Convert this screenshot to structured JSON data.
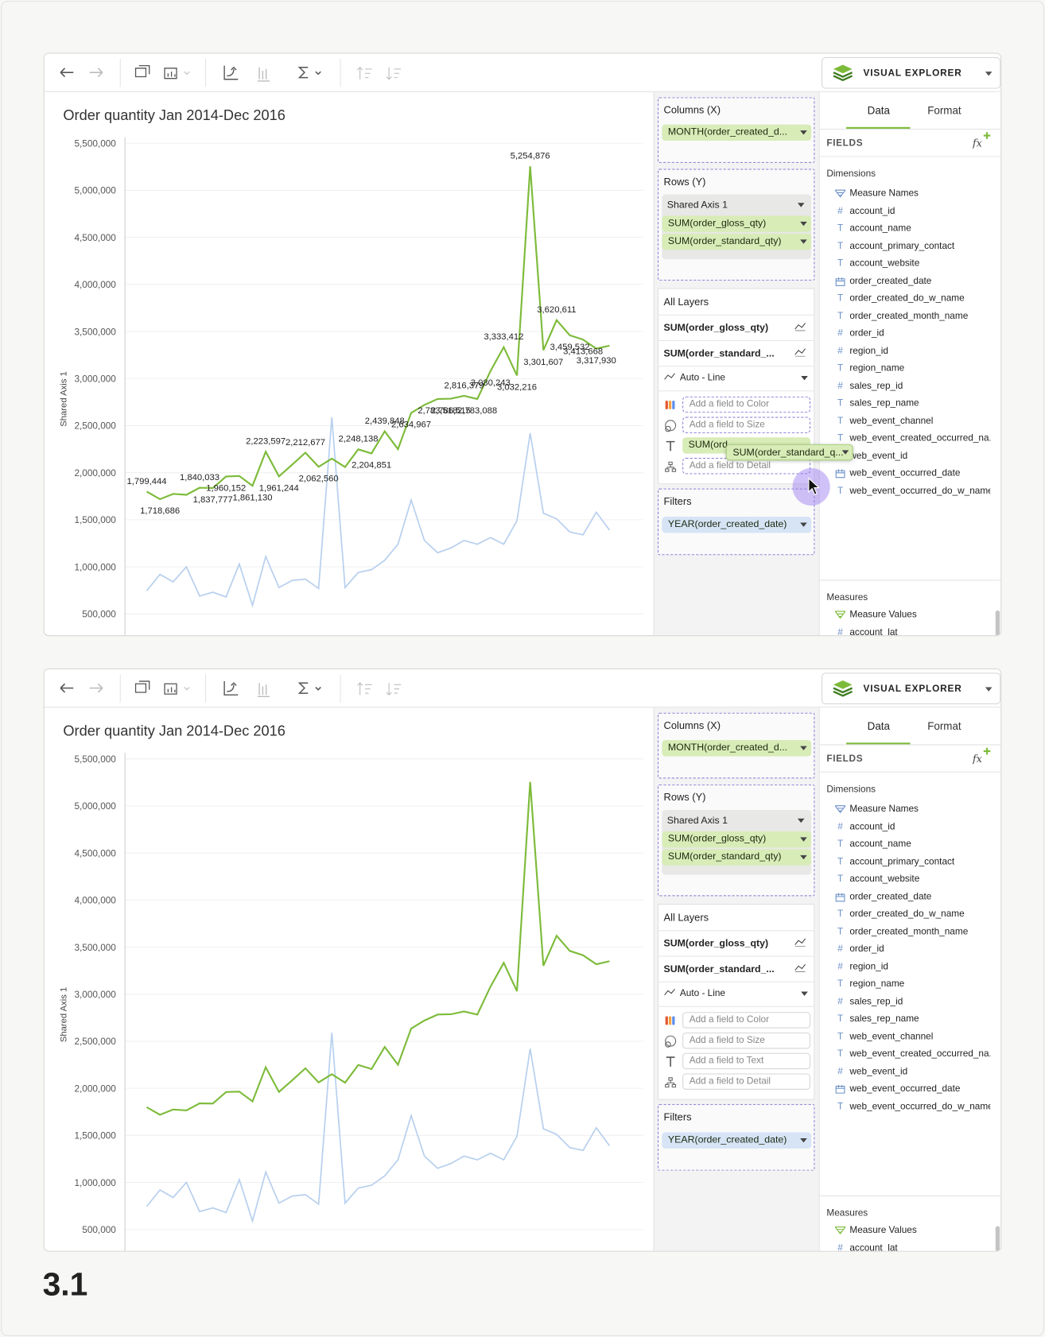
{
  "figure_label": "3.1",
  "chart_data": [
    {
      "type": "line",
      "title": "Order quantity Jan 2014-Dec 2016",
      "y_label": "Shared Axis 1",
      "categories": [
        null,
        null,
        null,
        null,
        null,
        null,
        null,
        null,
        null,
        null,
        null,
        null,
        null,
        null,
        null,
        null,
        null,
        null,
        null,
        null,
        null,
        null,
        null,
        null,
        null,
        null,
        null,
        null,
        null,
        null,
        null,
        null,
        null,
        null,
        null,
        null
      ],
      "series": [
        {
          "color": "#7dbb3a",
          "values": [
            1799444,
            1718686,
            1775000,
            1765000,
            1840033,
            1837777,
            1960152,
            1965000,
            1861130,
            2223597,
            1961244,
            2085000,
            2212677,
            2062560,
            2150000,
            2060000,
            2248138,
            2204851,
            2439848,
            2250000,
            2634967,
            2720000,
            2783518,
            2786515,
            2816379,
            2783088,
            3080243,
            3333412,
            3032216,
            5254876,
            3301607,
            3620611,
            3459532,
            3413668,
            3317930,
            3350000
          ],
          "value_labels": [
            "1,799,444",
            "1,718,686",
            null,
            null,
            "1,840,033",
            "1,837,777",
            "1,960,152",
            null,
            "1,861,130",
            "2,223,597",
            "1,961,244",
            null,
            "2,212,677",
            "2,062,560",
            null,
            null,
            "2,248,138",
            "2,204,851",
            "2,439,848",
            null,
            "2,634,967",
            null,
            "2,783,518",
            "2,786,515",
            "2,816,379",
            "2,783,088",
            "3,080,243",
            "3,333,412",
            "3,032,216",
            "5,254,876",
            "3,301,607",
            "3,620,611",
            "3,459,532",
            "3,413,668",
            "3,317,930",
            null
          ]
        },
        {
          "color": "#b8d0ee",
          "values": [
            745000,
            920000,
            840000,
            1000000,
            690000,
            730000,
            680000,
            1030000,
            590000,
            1110000,
            780000,
            855000,
            870000,
            770000,
            2590000,
            780000,
            940000,
            970000,
            1070000,
            1240000,
            1710000,
            1280000,
            1150000,
            1200000,
            1280000,
            1240000,
            1310000,
            1240000,
            1490000,
            2420000,
            1570000,
            1510000,
            1370000,
            1340000,
            1580000,
            1390000
          ]
        }
      ],
      "ylim": [
        264500,
        5563400
      ],
      "yticks": [
        {
          "value": 500000,
          "label": "500,000"
        },
        {
          "value": 1000000,
          "label": "1,000,000"
        },
        {
          "value": 1500000,
          "label": "1,500,000"
        },
        {
          "value": 2000000,
          "label": "2,000,000"
        },
        {
          "value": 2500000,
          "label": "2,500,000"
        },
        {
          "value": 3000000,
          "label": "3,000,000"
        },
        {
          "value": 3500000,
          "label": "3,500,000"
        },
        {
          "value": 4000000,
          "label": "4,000,000"
        },
        {
          "value": 4500000,
          "label": "4,500,000"
        },
        {
          "value": 5000000,
          "label": "5,000,000"
        },
        {
          "value": 5500000,
          "label": "5,500,000"
        }
      ],
      "grid": true
    },
    {
      "type": "line",
      "title": "Order quantity Jan 2014-Dec 2016",
      "y_label": "Shared Axis 1",
      "categories": [
        null,
        null,
        null,
        null,
        null,
        null,
        null,
        null,
        null,
        null,
        null,
        null,
        null,
        null,
        null,
        null,
        null,
        null,
        null,
        null,
        null,
        null,
        null,
        null,
        null,
        null,
        null,
        null,
        null,
        null,
        null,
        null,
        null,
        null,
        null,
        null
      ],
      "series": [
        {
          "color": "#7dbb3a",
          "values": [
            1799444,
            1718686,
            1775000,
            1765000,
            1840033,
            1837777,
            1960152,
            1965000,
            1861130,
            2223597,
            1961244,
            2085000,
            2212677,
            2062560,
            2150000,
            2060000,
            2248138,
            2204851,
            2439848,
            2250000,
            2634967,
            2720000,
            2783518,
            2786515,
            2816379,
            2783088,
            3080243,
            3333412,
            3032216,
            5254876,
            3301607,
            3620611,
            3459532,
            3413668,
            3317930,
            3350000
          ]
        },
        {
          "color": "#b8d0ee",
          "values": [
            745000,
            920000,
            840000,
            1000000,
            690000,
            730000,
            680000,
            1030000,
            590000,
            1110000,
            780000,
            855000,
            870000,
            770000,
            2590000,
            780000,
            940000,
            970000,
            1070000,
            1240000,
            1710000,
            1280000,
            1150000,
            1200000,
            1280000,
            1240000,
            1310000,
            1240000,
            1490000,
            2420000,
            1570000,
            1510000,
            1370000,
            1340000,
            1580000,
            1390000
          ]
        }
      ],
      "ylim": [
        264500,
        5563400
      ],
      "yticks": [
        {
          "value": 500000,
          "label": "500,000"
        },
        {
          "value": 1000000,
          "label": "1,000,000"
        },
        {
          "value": 1500000,
          "label": "1,500,000"
        },
        {
          "value": 2000000,
          "label": "2,000,000"
        },
        {
          "value": 2500000,
          "label": "2,500,000"
        },
        {
          "value": 3000000,
          "label": "3,000,000"
        },
        {
          "value": 3500000,
          "label": "3,500,000"
        },
        {
          "value": 4000000,
          "label": "4,000,000"
        },
        {
          "value": 4500000,
          "label": "4,500,000"
        },
        {
          "value": 5000000,
          "label": "5,000,000"
        },
        {
          "value": 5500000,
          "label": "5,500,000"
        }
      ],
      "grid": true
    }
  ],
  "panels": [
    {
      "app_title": "VISUAL EXPLORER",
      "columns": {
        "title": "Columns (X)",
        "pills": [
          "MONTH(order_created_d..."
        ]
      },
      "rows": {
        "title": "Rows (Y)",
        "group": "Shared Axis 1",
        "pills": [
          "SUM(order_gloss_qty)",
          "SUM(order_standard_qty)"
        ]
      },
      "layers": {
        "title": "All Layers",
        "items": [
          "SUM(order_gloss_qty)",
          "SUM(order_standard_..."
        ],
        "mark_type": "Auto - Line",
        "encodings": [
          "Add a field to Color",
          "Add a field to Size",
          "SUM(ord",
          "Add a field to Detail"
        ],
        "filled_encoding": 2
      },
      "drag_pill": "SUM(order_standard_q...",
      "filters": {
        "title": "Filters",
        "pills": [
          "YEAR(order_created_date)"
        ]
      },
      "fields": {
        "tabs": [
          "Data",
          "Format"
        ],
        "header": "FIELDS",
        "formula": "fx",
        "dimensions_title": "Dimensions",
        "dimensions": [
          {
            "icon": "names",
            "name": "Measure Names"
          },
          {
            "icon": "#",
            "name": "account_id"
          },
          {
            "icon": "T",
            "name": "account_name"
          },
          {
            "icon": "T",
            "name": "account_primary_contact"
          },
          {
            "icon": "T",
            "name": "account_website"
          },
          {
            "icon": "calendar",
            "name": "order_created_date"
          },
          {
            "icon": "T",
            "name": "order_created_do_w_name"
          },
          {
            "icon": "T",
            "name": "order_created_month_name"
          },
          {
            "icon": "#",
            "name": "order_id"
          },
          {
            "icon": "#",
            "name": "region_id"
          },
          {
            "icon": "T",
            "name": "region_name"
          },
          {
            "icon": "#",
            "name": "sales_rep_id"
          },
          {
            "icon": "T",
            "name": "sales_rep_name"
          },
          {
            "icon": "T",
            "name": "web_event_channel"
          },
          {
            "icon": "T",
            "name": "web_event_created_occurred_na..."
          },
          {
            "icon": "#",
            "name": "web_event_id"
          },
          {
            "icon": "calendar",
            "name": "web_event_occurred_date"
          },
          {
            "icon": "T",
            "name": "web_event_occurred_do_w_name"
          }
        ],
        "measures_title": "Measures",
        "measures": [
          {
            "icon": "values",
            "name": "Measure Values"
          },
          {
            "icon": "#",
            "name": "account_lat"
          }
        ]
      }
    },
    {
      "app_title": "VISUAL EXPLORER",
      "columns": {
        "title": "Columns (X)",
        "pills": [
          "MONTH(order_created_d..."
        ]
      },
      "rows": {
        "title": "Rows (Y)",
        "group": "Shared Axis 1",
        "pills": [
          "SUM(order_gloss_qty)",
          "SUM(order_standard_qty)"
        ]
      },
      "layers": {
        "title": "All Layers",
        "items": [
          "SUM(order_gloss_qty)",
          "SUM(order_standard_..."
        ],
        "mark_type": "Auto - Line",
        "encodings": [
          "Add a field to Color",
          "Add a field to Size",
          "Add a field to Text",
          "Add a field to Detail"
        ]
      },
      "filters": {
        "title": "Filters",
        "pills": [
          "YEAR(order_created_date)"
        ]
      },
      "fields": {
        "tabs": [
          "Data",
          "Format"
        ],
        "header": "FIELDS",
        "formula": "fx",
        "dimensions_title": "Dimensions",
        "dimensions": [
          {
            "icon": "names",
            "name": "Measure Names"
          },
          {
            "icon": "#",
            "name": "account_id"
          },
          {
            "icon": "T",
            "name": "account_name"
          },
          {
            "icon": "T",
            "name": "account_primary_contact"
          },
          {
            "icon": "T",
            "name": "account_website"
          },
          {
            "icon": "calendar",
            "name": "order_created_date"
          },
          {
            "icon": "T",
            "name": "order_created_do_w_name"
          },
          {
            "icon": "T",
            "name": "order_created_month_name"
          },
          {
            "icon": "#",
            "name": "order_id"
          },
          {
            "icon": "#",
            "name": "region_id"
          },
          {
            "icon": "T",
            "name": "region_name"
          },
          {
            "icon": "#",
            "name": "sales_rep_id"
          },
          {
            "icon": "T",
            "name": "sales_rep_name"
          },
          {
            "icon": "T",
            "name": "web_event_channel"
          },
          {
            "icon": "T",
            "name": "web_event_created_occurred_na..."
          },
          {
            "icon": "#",
            "name": "web_event_id"
          },
          {
            "icon": "calendar",
            "name": "web_event_occurred_date"
          },
          {
            "icon": "T",
            "name": "web_event_occurred_do_w_name"
          }
        ],
        "measures_title": "Measures",
        "measures": [
          {
            "icon": "values",
            "name": "Measure Values"
          },
          {
            "icon": "#",
            "name": "account_lat"
          }
        ]
      }
    }
  ]
}
